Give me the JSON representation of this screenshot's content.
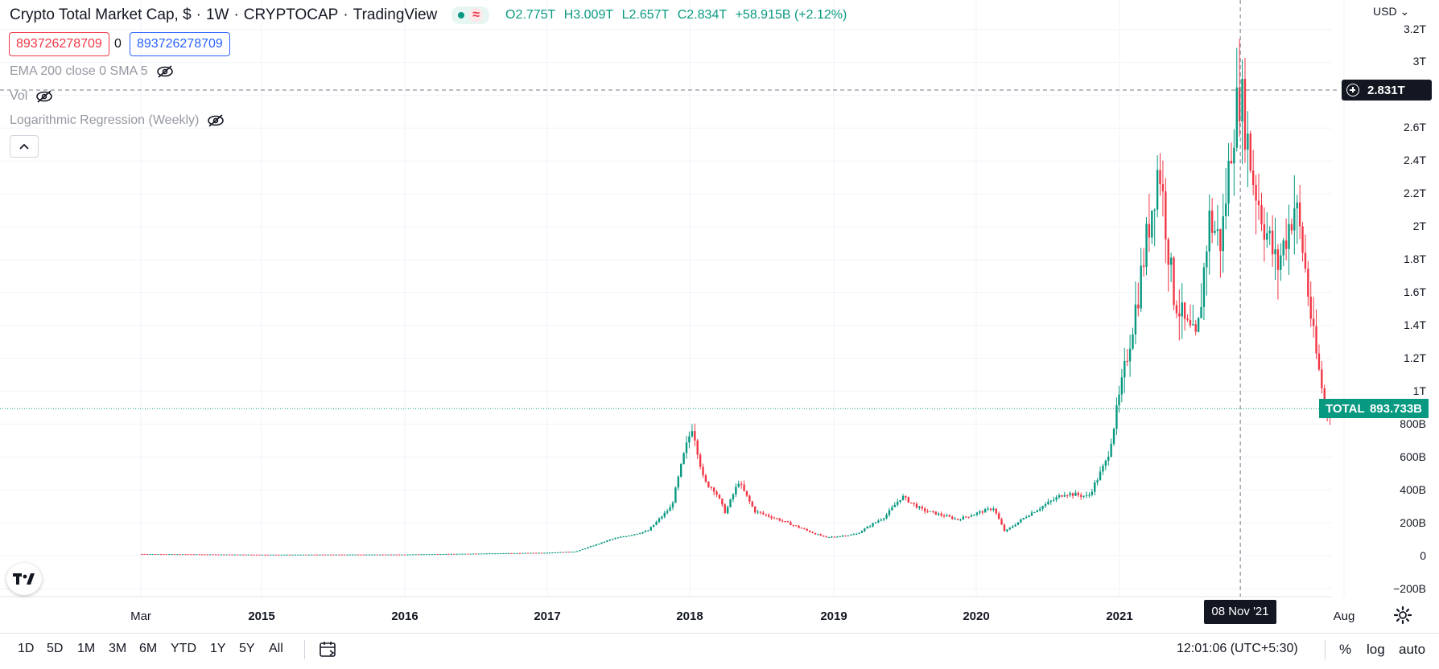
{
  "header": {
    "title": "Crypto Total Market Cap, $",
    "interval": "1W",
    "symbol": "CRYPTOCAP",
    "source": "TradingView",
    "ohlc": {
      "open": "O2.775T",
      "high": "H3.009T",
      "low": "L2.657T",
      "close": "C2.834T",
      "change": "+58.915B (+2.12%)"
    }
  },
  "trade_boxes": {
    "sell_value": "893726278709",
    "spread": "0",
    "buy_value": "893726278709"
  },
  "indicators": [
    {
      "label": "EMA 200 close 0 SMA 5"
    },
    {
      "label": "Vol"
    },
    {
      "label": "Logarithmic Regression (Weekly)"
    }
  ],
  "price_scale": {
    "currency": "USD",
    "labels": [
      "3.2T",
      "3T",
      "2.6T",
      "2.4T",
      "2.2T",
      "2T",
      "1.8T",
      "1.6T",
      "1.4T",
      "1.2T",
      "1T",
      "800B",
      "600B",
      "400B",
      "200B",
      "0",
      "−200B"
    ]
  },
  "time_scale": {
    "labels": [
      "Mar",
      "2015",
      "2016",
      "2017",
      "2018",
      "2019",
      "2020",
      "2021",
      "Aug"
    ]
  },
  "crosshair": {
    "date_label": "08 Nov '21",
    "price_label": "2.831T"
  },
  "last_price": {
    "symbol": "TOTAL",
    "value": "893.733B"
  },
  "bottom_toolbar": {
    "ranges": [
      "1D",
      "5D",
      "1M",
      "3M",
      "6M",
      "YTD",
      "1Y",
      "5Y",
      "All"
    ],
    "clock": "12:01:06 (UTC+5:30)",
    "percent": "%",
    "log": "log",
    "auto": "auto"
  },
  "colors": {
    "up": "#089981",
    "down": "#f23645",
    "grid": "#f0f3fa",
    "text": "#131722"
  },
  "chart_data": {
    "type": "candlestick",
    "title": "Crypto Total Market Cap, $",
    "ylabel": "",
    "xlabel": "",
    "ylim": [
      -200000000000,
      3200000000000
    ],
    "x_range": [
      "2014-03",
      "2022-08"
    ],
    "grid": true,
    "approximate_weekly_path": [
      {
        "date": "2014-03-01",
        "value": 10000000000
      },
      {
        "date": "2015-01-01",
        "value": 6000000000
      },
      {
        "date": "2016-01-01",
        "value": 7000000000
      },
      {
        "date": "2017-01-01",
        "value": 18000000000
      },
      {
        "date": "2017-03-15",
        "value": 25000000000
      },
      {
        "date": "2017-06-15",
        "value": 100000000000
      },
      {
        "date": "2017-09-15",
        "value": 150000000000
      },
      {
        "date": "2017-11-15",
        "value": 300000000000
      },
      {
        "date": "2017-12-15",
        "value": 600000000000
      },
      {
        "date": "2018-01-07",
        "value": 795000000000
      },
      {
        "date": "2018-02-05",
        "value": 450000000000
      },
      {
        "date": "2018-03-05",
        "value": 400000000000
      },
      {
        "date": "2018-04-01",
        "value": 260000000000
      },
      {
        "date": "2018-05-05",
        "value": 450000000000
      },
      {
        "date": "2018-06-15",
        "value": 270000000000
      },
      {
        "date": "2018-08-15",
        "value": 220000000000
      },
      {
        "date": "2018-11-20",
        "value": 130000000000
      },
      {
        "date": "2018-12-15",
        "value": 110000000000
      },
      {
        "date": "2019-03-01",
        "value": 130000000000
      },
      {
        "date": "2019-05-15",
        "value": 240000000000
      },
      {
        "date": "2019-06-26",
        "value": 360000000000
      },
      {
        "date": "2019-08-15",
        "value": 280000000000
      },
      {
        "date": "2019-11-15",
        "value": 220000000000
      },
      {
        "date": "2020-02-15",
        "value": 290000000000
      },
      {
        "date": "2020-03-15",
        "value": 145000000000
      },
      {
        "date": "2020-05-15",
        "value": 250000000000
      },
      {
        "date": "2020-08-15",
        "value": 380000000000
      },
      {
        "date": "2020-10-15",
        "value": 360000000000
      },
      {
        "date": "2020-12-01",
        "value": 580000000000
      },
      {
        "date": "2021-01-10",
        "value": 1050000000000
      },
      {
        "date": "2021-02-20",
        "value": 1600000000000
      },
      {
        "date": "2021-04-14",
        "value": 2400000000000
      },
      {
        "date": "2021-05-20",
        "value": 1600000000000
      },
      {
        "date": "2021-06-20",
        "value": 1400000000000
      },
      {
        "date": "2021-07-20",
        "value": 1300000000000
      },
      {
        "date": "2021-08-20",
        "value": 2050000000000
      },
      {
        "date": "2021-09-20",
        "value": 1900000000000
      },
      {
        "date": "2021-10-20",
        "value": 2600000000000
      },
      {
        "date": "2021-11-08",
        "value": 2834000000000
      },
      {
        "date": "2021-12-10",
        "value": 2300000000000
      },
      {
        "date": "2022-01-10",
        "value": 2000000000000
      },
      {
        "date": "2022-02-10",
        "value": 1750000000000
      },
      {
        "date": "2022-03-28",
        "value": 2150000000000
      },
      {
        "date": "2022-04-20",
        "value": 1800000000000
      },
      {
        "date": "2022-05-15",
        "value": 1300000000000
      },
      {
        "date": "2022-06-13",
        "value": 900000000000
      },
      {
        "date": "2022-06-27",
        "value": 893733000000
      }
    ]
  }
}
